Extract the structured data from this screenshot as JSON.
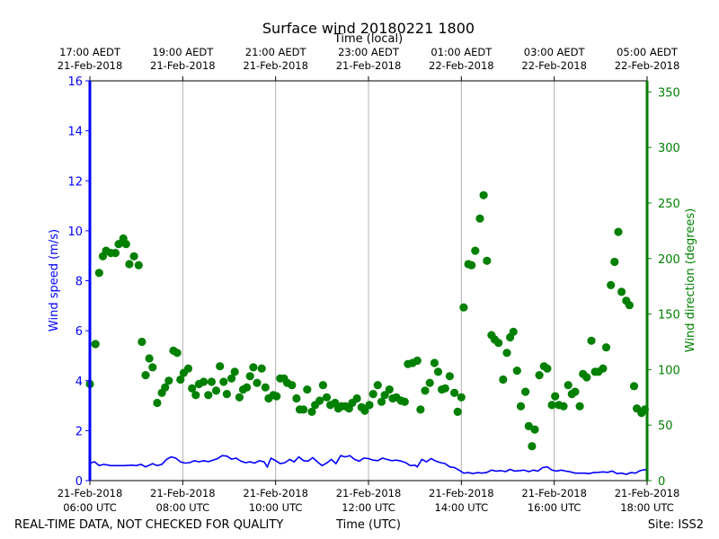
{
  "chart_data": {
    "type": "line+scatter",
    "title": "Surface wind 20180221 1800",
    "top_axis_label": "Time (local)",
    "xlabel": "Time (UTC)",
    "ylabel_left": "Wind speed (m/s)",
    "ylabel_right": "Wind direction (degrees)",
    "footer_left": "REAL-TIME DATA, NOT CHECKED FOR QUALITY",
    "footer_right": "Site: ISS2",
    "x_range_hours_utc": [
      6.0,
      18.0
    ],
    "ylim_left": [
      0,
      16
    ],
    "ylim_right": [
      0,
      360
    ],
    "yticks_left": [
      "0",
      "2",
      "4",
      "6",
      "8",
      "10",
      "12",
      "14",
      "16"
    ],
    "yticks_right": [
      "0",
      "50",
      "100",
      "150",
      "200",
      "250",
      "300",
      "350"
    ],
    "bottom_ticks": [
      {
        "hour": 6,
        "line1": "21-Feb-2018",
        "line2": "06:00 UTC"
      },
      {
        "hour": 8,
        "line1": "21-Feb-2018",
        "line2": "08:00 UTC"
      },
      {
        "hour": 10,
        "line1": "21-Feb-2018",
        "line2": "10:00 UTC"
      },
      {
        "hour": 12,
        "line1": "21-Feb-2018",
        "line2": "12:00 UTC"
      },
      {
        "hour": 14,
        "line1": "21-Feb-2018",
        "line2": "14:00 UTC"
      },
      {
        "hour": 16,
        "line1": "21-Feb-2018",
        "line2": "16:00 UTC"
      },
      {
        "hour": 18,
        "line1": "21-Feb-2018",
        "line2": "18:00 UTC"
      }
    ],
    "top_ticks": [
      {
        "hour": 6,
        "line1": "17:00 AEDT",
        "line2": "21-Feb-2018"
      },
      {
        "hour": 8,
        "line1": "19:00 AEDT",
        "line2": "21-Feb-2018"
      },
      {
        "hour": 10,
        "line1": "21:00 AEDT",
        "line2": "21-Feb-2018"
      },
      {
        "hour": 12,
        "line1": "23:00 AEDT",
        "line2": "21-Feb-2018"
      },
      {
        "hour": 14,
        "line1": "01:00 AEDT",
        "line2": "22-Feb-2018"
      },
      {
        "hour": 16,
        "line1": "03:00 AEDT",
        "line2": "22-Feb-2018"
      },
      {
        "hour": 18,
        "line1": "05:00 AEDT",
        "line2": "22-Feb-2018"
      }
    ],
    "speed_color": "#0000ff",
    "direction_color": "#008000",
    "grid_color": "#b0b0b0",
    "series": [
      {
        "name": "Wind speed",
        "axis": "left",
        "style": "line",
        "points": [
          [
            6.0,
            0.7
          ],
          [
            6.1,
            0.75
          ],
          [
            6.2,
            0.6
          ],
          [
            6.3,
            0.65
          ],
          [
            6.45,
            0.6
          ],
          [
            6.6,
            0.6
          ],
          [
            6.75,
            0.6
          ],
          [
            6.9,
            0.62
          ],
          [
            7.0,
            0.6
          ],
          [
            7.1,
            0.65
          ],
          [
            7.2,
            0.55
          ],
          [
            7.35,
            0.68
          ],
          [
            7.45,
            0.6
          ],
          [
            7.55,
            0.65
          ],
          [
            7.65,
            0.85
          ],
          [
            7.75,
            0.95
          ],
          [
            7.85,
            0.9
          ],
          [
            7.95,
            0.75
          ],
          [
            8.05,
            0.7
          ],
          [
            8.15,
            0.72
          ],
          [
            8.25,
            0.8
          ],
          [
            8.35,
            0.75
          ],
          [
            8.45,
            0.8
          ],
          [
            8.55,
            0.76
          ],
          [
            8.65,
            0.82
          ],
          [
            8.75,
            0.88
          ],
          [
            8.85,
            1.0
          ],
          [
            8.95,
            0.98
          ],
          [
            9.05,
            0.86
          ],
          [
            9.15,
            0.9
          ],
          [
            9.25,
            0.78
          ],
          [
            9.35,
            0.72
          ],
          [
            9.45,
            0.75
          ],
          [
            9.55,
            0.7
          ],
          [
            9.65,
            0.8
          ],
          [
            9.75,
            0.75
          ],
          [
            9.82,
            0.55
          ],
          [
            9.9,
            0.9
          ],
          [
            10.0,
            0.8
          ],
          [
            10.1,
            0.68
          ],
          [
            10.2,
            0.72
          ],
          [
            10.3,
            0.85
          ],
          [
            10.4,
            0.75
          ],
          [
            10.5,
            0.95
          ],
          [
            10.6,
            0.8
          ],
          [
            10.7,
            0.78
          ],
          [
            10.8,
            0.92
          ],
          [
            10.9,
            0.75
          ],
          [
            11.0,
            0.6
          ],
          [
            11.1,
            0.7
          ],
          [
            11.2,
            0.85
          ],
          [
            11.3,
            0.68
          ],
          [
            11.4,
            1.0
          ],
          [
            11.5,
            0.95
          ],
          [
            11.6,
            1.0
          ],
          [
            11.7,
            0.85
          ],
          [
            11.8,
            0.78
          ],
          [
            11.9,
            0.9
          ],
          [
            12.0,
            0.88
          ],
          [
            12.1,
            0.82
          ],
          [
            12.2,
            0.8
          ],
          [
            12.3,
            0.9
          ],
          [
            12.4,
            0.85
          ],
          [
            12.5,
            0.8
          ],
          [
            12.6,
            0.82
          ],
          [
            12.7,
            0.78
          ],
          [
            12.8,
            0.72
          ],
          [
            12.9,
            0.6
          ],
          [
            13.0,
            0.62
          ],
          [
            13.05,
            0.55
          ],
          [
            13.15,
            0.85
          ],
          [
            13.25,
            0.75
          ],
          [
            13.35,
            0.88
          ],
          [
            13.45,
            0.78
          ],
          [
            13.55,
            0.72
          ],
          [
            13.65,
            0.68
          ],
          [
            13.75,
            0.55
          ],
          [
            13.85,
            0.52
          ],
          [
            13.95,
            0.42
          ],
          [
            14.05,
            0.3
          ],
          [
            14.15,
            0.32
          ],
          [
            14.25,
            0.28
          ],
          [
            14.35,
            0.32
          ],
          [
            14.45,
            0.3
          ],
          [
            14.55,
            0.33
          ],
          [
            14.65,
            0.42
          ],
          [
            14.75,
            0.38
          ],
          [
            14.85,
            0.4
          ],
          [
            14.95,
            0.36
          ],
          [
            15.05,
            0.45
          ],
          [
            15.15,
            0.38
          ],
          [
            15.25,
            0.4
          ],
          [
            15.35,
            0.42
          ],
          [
            15.45,
            0.36
          ],
          [
            15.55,
            0.42
          ],
          [
            15.65,
            0.38
          ],
          [
            15.75,
            0.52
          ],
          [
            15.85,
            0.55
          ],
          [
            15.95,
            0.42
          ],
          [
            16.05,
            0.38
          ],
          [
            16.15,
            0.42
          ],
          [
            16.25,
            0.38
          ],
          [
            16.35,
            0.35
          ],
          [
            16.45,
            0.3
          ],
          [
            16.55,
            0.3
          ],
          [
            16.65,
            0.3
          ],
          [
            16.75,
            0.28
          ],
          [
            16.85,
            0.32
          ],
          [
            16.95,
            0.33
          ],
          [
            17.05,
            0.35
          ],
          [
            17.15,
            0.33
          ],
          [
            17.25,
            0.38
          ],
          [
            17.35,
            0.28
          ],
          [
            17.45,
            0.3
          ],
          [
            17.55,
            0.25
          ],
          [
            17.65,
            0.32
          ],
          [
            17.75,
            0.3
          ],
          [
            17.85,
            0.4
          ],
          [
            17.95,
            0.44
          ],
          [
            18.0,
            0.42
          ]
        ]
      },
      {
        "name": "Wind direction",
        "axis": "right",
        "style": "scatter",
        "points": [
          [
            6.0,
            87
          ],
          [
            6.12,
            123
          ],
          [
            6.2,
            187
          ],
          [
            6.28,
            202
          ],
          [
            6.35,
            207
          ],
          [
            6.45,
            205
          ],
          [
            6.55,
            205
          ],
          [
            6.62,
            213
          ],
          [
            6.72,
            218
          ],
          [
            6.78,
            213
          ],
          [
            6.85,
            195
          ],
          [
            6.95,
            202
          ],
          [
            7.05,
            194
          ],
          [
            7.12,
            125
          ],
          [
            7.2,
            95
          ],
          [
            7.28,
            110
          ],
          [
            7.35,
            102
          ],
          [
            7.45,
            70
          ],
          [
            7.55,
            79
          ],
          [
            7.62,
            84
          ],
          [
            7.7,
            90
          ],
          [
            7.8,
            117
          ],
          [
            7.88,
            115
          ],
          [
            7.95,
            91
          ],
          [
            8.02,
            97
          ],
          [
            8.12,
            101
          ],
          [
            8.2,
            83
          ],
          [
            8.28,
            77
          ],
          [
            8.35,
            87
          ],
          [
            8.45,
            89
          ],
          [
            8.55,
            77
          ],
          [
            8.62,
            89
          ],
          [
            8.72,
            81
          ],
          [
            8.8,
            103
          ],
          [
            8.88,
            89
          ],
          [
            8.95,
            78
          ],
          [
            9.05,
            92
          ],
          [
            9.12,
            98
          ],
          [
            9.22,
            75
          ],
          [
            9.3,
            82
          ],
          [
            9.38,
            84
          ],
          [
            9.45,
            94
          ],
          [
            9.52,
            102
          ],
          [
            9.6,
            88
          ],
          [
            9.7,
            101
          ],
          [
            9.78,
            84
          ],
          [
            9.85,
            74
          ],
          [
            9.95,
            77
          ],
          [
            10.02,
            76
          ],
          [
            10.1,
            92
          ],
          [
            10.18,
            92
          ],
          [
            10.25,
            88
          ],
          [
            10.35,
            86
          ],
          [
            10.45,
            74
          ],
          [
            10.52,
            64
          ],
          [
            10.6,
            64
          ],
          [
            10.68,
            82
          ],
          [
            10.78,
            62
          ],
          [
            10.85,
            68
          ],
          [
            10.95,
            72
          ],
          [
            11.02,
            86
          ],
          [
            11.1,
            75
          ],
          [
            11.18,
            68
          ],
          [
            11.28,
            70
          ],
          [
            11.35,
            65
          ],
          [
            11.42,
            67
          ],
          [
            11.5,
            67
          ],
          [
            11.58,
            65
          ],
          [
            11.65,
            70
          ],
          [
            11.75,
            74
          ],
          [
            11.85,
            66
          ],
          [
            11.92,
            63
          ],
          [
            12.02,
            68
          ],
          [
            12.1,
            78
          ],
          [
            12.2,
            86
          ],
          [
            12.28,
            71
          ],
          [
            12.35,
            77
          ],
          [
            12.45,
            82
          ],
          [
            12.52,
            74
          ],
          [
            12.6,
            75
          ],
          [
            12.7,
            72
          ],
          [
            12.78,
            71
          ],
          [
            12.85,
            105
          ],
          [
            12.95,
            106
          ],
          [
            13.05,
            108
          ],
          [
            13.12,
            64
          ],
          [
            13.22,
            81
          ],
          [
            13.32,
            88
          ],
          [
            13.42,
            106
          ],
          [
            13.5,
            98
          ],
          [
            13.58,
            82
          ],
          [
            13.65,
            83
          ],
          [
            13.75,
            94
          ],
          [
            13.85,
            79
          ],
          [
            13.92,
            62
          ],
          [
            14.0,
            75
          ],
          [
            14.05,
            156
          ],
          [
            14.15,
            195
          ],
          [
            14.22,
            194
          ],
          [
            14.3,
            207
          ],
          [
            14.4,
            236
          ],
          [
            14.48,
            257
          ],
          [
            14.55,
            198
          ],
          [
            14.65,
            131
          ],
          [
            14.72,
            127
          ],
          [
            14.8,
            124
          ],
          [
            14.9,
            91
          ],
          [
            14.98,
            115
          ],
          [
            15.05,
            129
          ],
          [
            15.12,
            134
          ],
          [
            15.2,
            99
          ],
          [
            15.28,
            67
          ],
          [
            15.38,
            80
          ],
          [
            15.45,
            49
          ],
          [
            15.52,
            31
          ],
          [
            15.58,
            46
          ],
          [
            15.68,
            95
          ],
          [
            15.78,
            103
          ],
          [
            15.85,
            101
          ],
          [
            15.95,
            68
          ],
          [
            16.02,
            76
          ],
          [
            16.1,
            68
          ],
          [
            16.2,
            67
          ],
          [
            16.3,
            86
          ],
          [
            16.38,
            78
          ],
          [
            16.45,
            80
          ],
          [
            16.55,
            67
          ],
          [
            16.62,
            96
          ],
          [
            16.7,
            93
          ],
          [
            16.8,
            126
          ],
          [
            16.88,
            98
          ],
          [
            16.95,
            98
          ],
          [
            17.05,
            101
          ],
          [
            17.12,
            120
          ],
          [
            17.22,
            176
          ],
          [
            17.3,
            197
          ],
          [
            17.38,
            224
          ],
          [
            17.45,
            170
          ],
          [
            17.55,
            162
          ],
          [
            17.62,
            158
          ],
          [
            17.72,
            85
          ],
          [
            17.78,
            65
          ],
          [
            17.88,
            61
          ],
          [
            17.95,
            64
          ]
        ]
      }
    ]
  }
}
